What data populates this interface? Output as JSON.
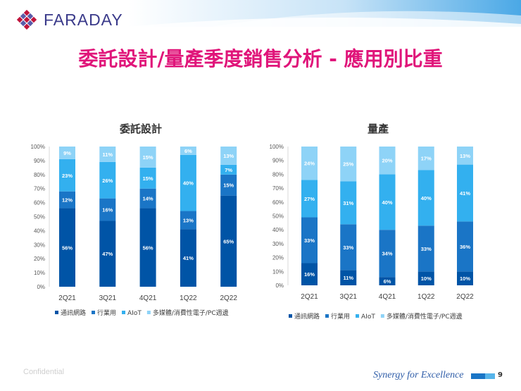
{
  "brand": {
    "name": "FARADAY",
    "logo": "faraday-diamond-logo"
  },
  "slide": {
    "title": "委託設計/量產季度銷售分析 - 應用別比重",
    "confidential": "Confidential",
    "tagline": "Synergy for Excellence",
    "page_number": "9"
  },
  "colors": {
    "title": "#e0157a",
    "series": [
      "#0054a6",
      "#1a75c6",
      "#33b0ef",
      "#8ed3f7"
    ]
  },
  "chart_data": [
    {
      "type": "bar",
      "stacked": true,
      "title": "委託設計",
      "categories": [
        "2Q21",
        "3Q21",
        "4Q21",
        "1Q22",
        "2Q22"
      ],
      "yticks": [
        "0%",
        "10%",
        "20%",
        "30%",
        "40%",
        "50%",
        "60%",
        "70%",
        "80%",
        "90%",
        "100%"
      ],
      "ylim": [
        0,
        100
      ],
      "grid": false,
      "legend_position": "bottom",
      "series": [
        {
          "name": "通訊網路",
          "values": [
            56,
            47,
            56,
            41,
            65
          ],
          "labels": [
            "56%",
            "47%",
            "56%",
            "41%",
            "65%"
          ]
        },
        {
          "name": "行業用",
          "values": [
            12,
            16,
            14,
            13,
            15
          ],
          "labels": [
            "12%",
            "16%",
            "14%",
            "13%",
            "15%"
          ]
        },
        {
          "name": "AIoT",
          "values": [
            23,
            26,
            15,
            40,
            7
          ],
          "labels": [
            "23%",
            "26%",
            "15%",
            "40%",
            "7%"
          ]
        },
        {
          "name": "多媒體/消費性電子/PC週邊",
          "values": [
            9,
            11,
            15,
            6,
            13
          ],
          "labels": [
            "9%",
            "11%",
            "15%",
            "6%",
            "13%"
          ]
        }
      ]
    },
    {
      "type": "bar",
      "stacked": true,
      "title": "量產",
      "categories": [
        "2Q21",
        "3Q21",
        "4Q21",
        "1Q22",
        "2Q22"
      ],
      "yticks": [
        "0%",
        "10%",
        "20%",
        "30%",
        "40%",
        "50%",
        "60%",
        "70%",
        "80%",
        "90%",
        "100%"
      ],
      "ylim": [
        0,
        100
      ],
      "grid": false,
      "legend_position": "bottom",
      "series": [
        {
          "name": "通訊網路",
          "values": [
            16,
            11,
            6,
            10,
            10
          ],
          "labels": [
            "16%",
            "11%",
            "6%",
            "10%",
            "10%"
          ]
        },
        {
          "name": "行業用",
          "values": [
            33,
            33,
            34,
            33,
            36
          ],
          "labels": [
            "33%",
            "33%",
            "34%",
            "33%",
            "36%"
          ]
        },
        {
          "name": "AIoT",
          "values": [
            27,
            31,
            40,
            40,
            41
          ],
          "labels": [
            "27%",
            "31%",
            "40%",
            "40%",
            "41%"
          ]
        },
        {
          "name": "多媒體/消費性電子/PC週邊",
          "values": [
            24,
            25,
            20,
            17,
            13
          ],
          "labels": [
            "24%",
            "25%",
            "20%",
            "17%",
            "13%"
          ]
        }
      ]
    }
  ]
}
